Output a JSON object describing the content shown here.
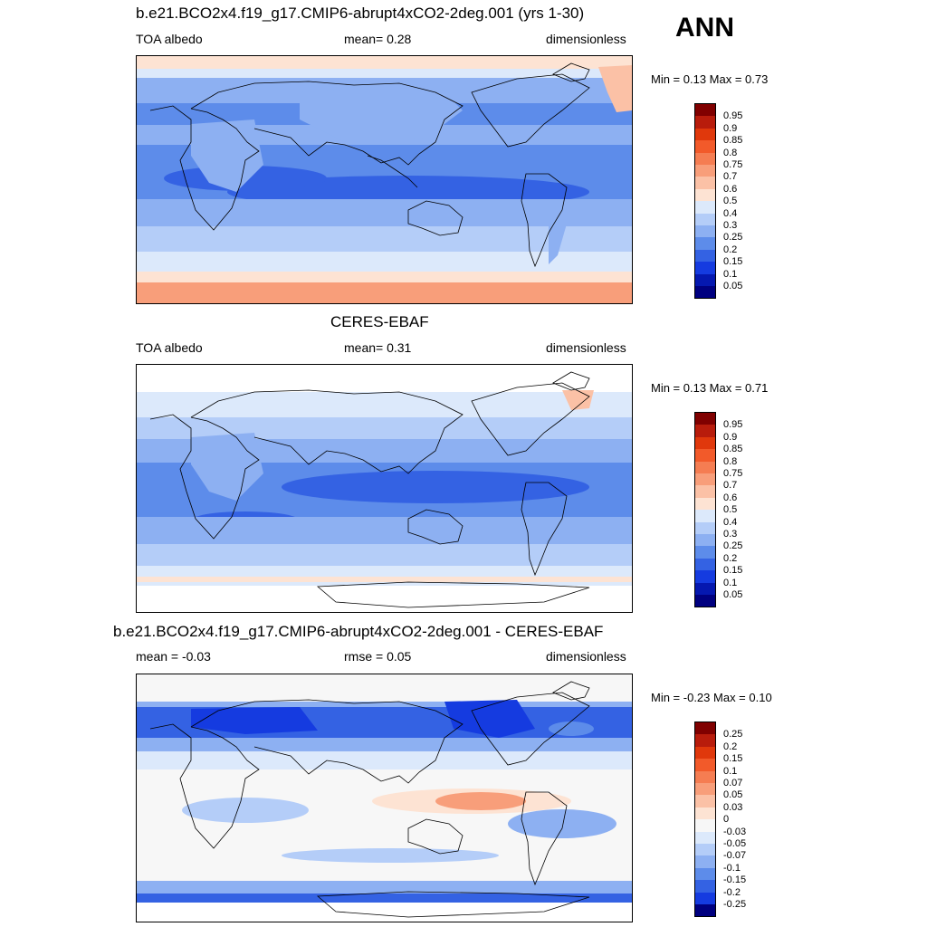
{
  "season": "ANN",
  "panels": [
    {
      "title": "b.e21.BCO2x4.f19_g17.CMIP6-abrupt4xCO2-2deg.001 (yrs 1-30)",
      "left": "TOA albedo",
      "center": "mean=   0.28",
      "right": "dimensionless",
      "minmax": "Min =   0.13 Max =   0.73"
    },
    {
      "title": "CERES-EBAF",
      "left": "TOA albedo",
      "center": "mean=   0.31",
      "right": "dimensionless",
      "minmax": "Min =   0.13 Max =   0.71"
    },
    {
      "title": "b.e21.BCO2x4.f19_g17.CMIP6-abrupt4xCO2-2deg.001 - CERES-EBAF",
      "left": "mean =  -0.03",
      "center": "rmse =   0.05",
      "right": "dimensionless",
      "minmax": "Min =  -0.23 Max =   0.10"
    }
  ],
  "colorbars": {
    "albedo": {
      "labels": [
        "0.95",
        "0.9",
        "0.85",
        "0.8",
        "0.75",
        "0.7",
        "0.6",
        "0.5",
        "0.4",
        "0.3",
        "0.25",
        "0.2",
        "0.15",
        "0.1",
        "0.05"
      ],
      "colors": [
        "#800000",
        "#b81c0c",
        "#e0380c",
        "#f25a2a",
        "#f57d52",
        "#f89e7a",
        "#fbc1a6",
        "#fde3d3",
        "#dce9fb",
        "#b4cdf8",
        "#8db0f2",
        "#5d8cea",
        "#3462e3",
        "#153be0",
        "#0518b0",
        "#000080"
      ]
    },
    "diff": {
      "labels": [
        "0.25",
        "0.2",
        "0.15",
        "0.1",
        "0.07",
        "0.05",
        "0.03",
        "0",
        "-0.03",
        "-0.05",
        "-0.07",
        "-0.1",
        "-0.15",
        "-0.2",
        "-0.25"
      ],
      "colors": [
        "#800000",
        "#b81c0c",
        "#e0380c",
        "#f25a2a",
        "#f57d52",
        "#f89e7a",
        "#fbc1a6",
        "#fde3d3",
        "#f7f7f7",
        "#dce9fb",
        "#b4cdf8",
        "#8db0f2",
        "#5d8cea",
        "#3462e3",
        "#153be0",
        "#000080"
      ]
    }
  }
}
